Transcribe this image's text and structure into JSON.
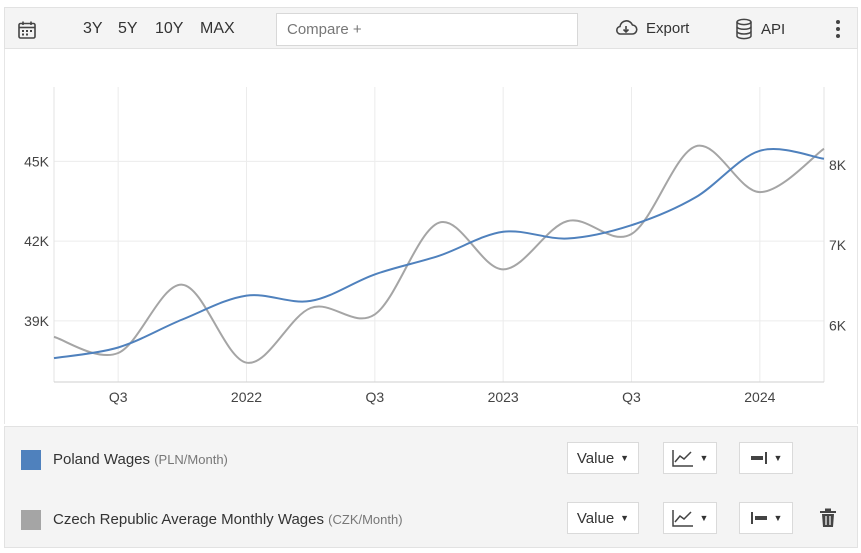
{
  "toolbar": {
    "ranges": [
      "3Y",
      "5Y",
      "10Y",
      "MAX"
    ],
    "compare_placeholder": "Compare +",
    "export_label": "Export",
    "api_label": "API",
    "icons": [
      "calendar-icon",
      "cloud-download-icon",
      "database-icon",
      "kebab-menu-icon"
    ]
  },
  "chart_data": {
    "type": "line",
    "x_tick_labels": [
      "Q3",
      "2022",
      "Q3",
      "2023",
      "Q3",
      "2024"
    ],
    "left_axis": {
      "ticks": [
        "39K",
        "42K",
        "45K"
      ],
      "ylim": [
        36700,
        47800
      ]
    },
    "right_axis": {
      "ticks": [
        "6K",
        "7K",
        "8K"
      ],
      "ylim": [
        5300,
        8967
      ]
    },
    "grid": true,
    "series": [
      {
        "name": "Poland Wages",
        "unit": "(PLN/Month)",
        "axis": "left",
        "color": "#4f81bd",
        "x": [
          0,
          1,
          2,
          3,
          4,
          5,
          6,
          7,
          8,
          9,
          10,
          11,
          12
        ],
        "values": [
          37600,
          38000,
          39050,
          39950,
          39750,
          40750,
          41450,
          42350,
          42100,
          42600,
          43650,
          45400,
          45100
        ]
      },
      {
        "name": "Czech Republic Average Monthly Wages",
        "unit": "(CZK/Month)",
        "axis": "right",
        "color": "#a5a5a5",
        "x": [
          0,
          1,
          2,
          3,
          4,
          5,
          6,
          7,
          8,
          9,
          10,
          11,
          12
        ],
        "values": [
          5860,
          5660,
          6510,
          5540,
          6220,
          6140,
          7280,
          6700,
          7300,
          7140,
          8230,
          7660,
          8200
        ]
      }
    ]
  },
  "legend": {
    "controls": {
      "value_label": "Value"
    },
    "icons": [
      "line-chart-icon",
      "axis-right-icon",
      "axis-left-icon",
      "trash-icon"
    ]
  }
}
